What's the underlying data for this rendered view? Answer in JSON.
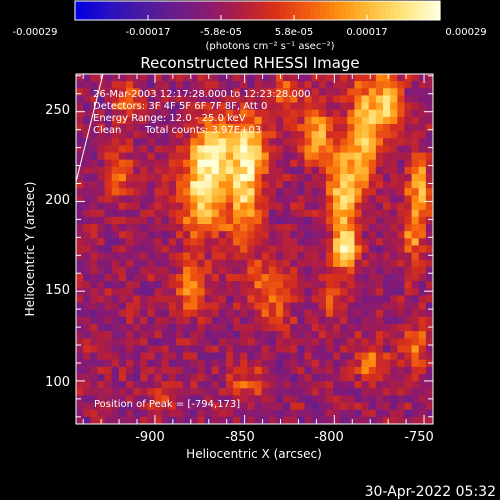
{
  "colors": {
    "background": "#000000",
    "foreground": "#ffffff",
    "colormap": [
      "#0000e0",
      "#2a10c0",
      "#4a1aa0",
      "#6a1e8a",
      "#8a1a70",
      "#b01e40",
      "#d8301a",
      "#f05a10",
      "#ff9010",
      "#ffc040",
      "#ffe680",
      "#ffffd8"
    ]
  },
  "colorbar": {
    "ticks": [
      "-0.00029",
      "-0.00017",
      "-5.8e-05",
      "5.8e-05",
      "0.00017",
      "0.00029"
    ],
    "unit_label": "(photons cm⁻² s⁻¹ asec⁻²)",
    "range": [
      -0.00029,
      0.00029
    ]
  },
  "chart_data": {
    "type": "heatmap",
    "title": "Reconstructed RHESSI Image",
    "xlabel": "Heliocentric X (arcsec)",
    "ylabel": "Heliocentric Y (arcsec)",
    "xlim": [
      -944,
      -745
    ],
    "ylim": [
      76,
      271
    ],
    "x_tick_labels": [
      "-900",
      "-850",
      "-800",
      "-750"
    ],
    "x_tick_values": [
      -900,
      -850,
      -800,
      -750
    ],
    "y_tick_labels": [
      "100",
      "150",
      "200",
      "250"
    ],
    "y_tick_values": [
      100,
      150,
      200,
      250
    ],
    "grid": false,
    "hotspots": [
      {
        "x": -873,
        "y": 205,
        "peak": 0.00029,
        "sx": 9,
        "sy": 18
      },
      {
        "x": -866,
        "y": 230,
        "peak": 0.00024,
        "sx": 8,
        "sy": 12
      },
      {
        "x": -850,
        "y": 205,
        "peak": 0.00025,
        "sx": 6,
        "sy": 24
      },
      {
        "x": -844,
        "y": 230,
        "peak": 0.0002,
        "sx": 6,
        "sy": 12
      },
      {
        "x": -794,
        "y": 173,
        "peak": 0.00029,
        "sx": 5,
        "sy": 9
      },
      {
        "x": -795,
        "y": 205,
        "peak": 0.00028,
        "sx": 6,
        "sy": 16
      },
      {
        "x": -810,
        "y": 238,
        "peak": 0.00022,
        "sx": 7,
        "sy": 12
      },
      {
        "x": -783,
        "y": 240,
        "peak": 0.00027,
        "sx": 6,
        "sy": 20
      },
      {
        "x": -770,
        "y": 255,
        "peak": 0.00026,
        "sx": 5,
        "sy": 12
      },
      {
        "x": -752,
        "y": 210,
        "peak": 0.00022,
        "sx": 4,
        "sy": 12
      },
      {
        "x": -756,
        "y": 185,
        "peak": 0.00017,
        "sx": 5,
        "sy": 14
      },
      {
        "x": -920,
        "y": 215,
        "peak": 0.00018,
        "sx": 5,
        "sy": 10
      },
      {
        "x": -915,
        "y": 255,
        "peak": 0.00016,
        "sx": 5,
        "sy": 7
      },
      {
        "x": -896,
        "y": 90,
        "peak": 0.00014,
        "sx": 6,
        "sy": 6
      },
      {
        "x": -880,
        "y": 150,
        "peak": 0.00019,
        "sx": 6,
        "sy": 10
      },
      {
        "x": -835,
        "y": 150,
        "peak": 0.00018,
        "sx": 7,
        "sy": 12
      },
      {
        "x": -828,
        "y": 260,
        "peak": 0.00016,
        "sx": 5,
        "sy": 8
      },
      {
        "x": -780,
        "y": 110,
        "peak": 0.00015,
        "sx": 6,
        "sy": 8
      },
      {
        "x": -755,
        "y": 120,
        "peak": 0.00016,
        "sx": 5,
        "sy": 8
      },
      {
        "x": -850,
        "y": 100,
        "peak": 0.00012,
        "sx": 7,
        "sy": 7
      },
      {
        "x": -803,
        "y": 145,
        "peak": 0.00013,
        "sx": 5,
        "sy": 7
      }
    ],
    "peak_position": [
      -794,
      173
    ]
  },
  "annotations": {
    "time_range": "26-Mar-2003 12:17:28.000 to 12:23:28.000",
    "detectors": "Detectors: 3F 4F 5F 6F 7F 8F, Att 0",
    "energy_range": "Energy Range: 12.0 - 25.0 keV",
    "method": "Clean",
    "total_counts": "Total counts: 3.97E+03",
    "peak": "Position of Peak = [-794,173]"
  },
  "footer": {
    "timestamp": "30-Apr-2022 05:32"
  }
}
